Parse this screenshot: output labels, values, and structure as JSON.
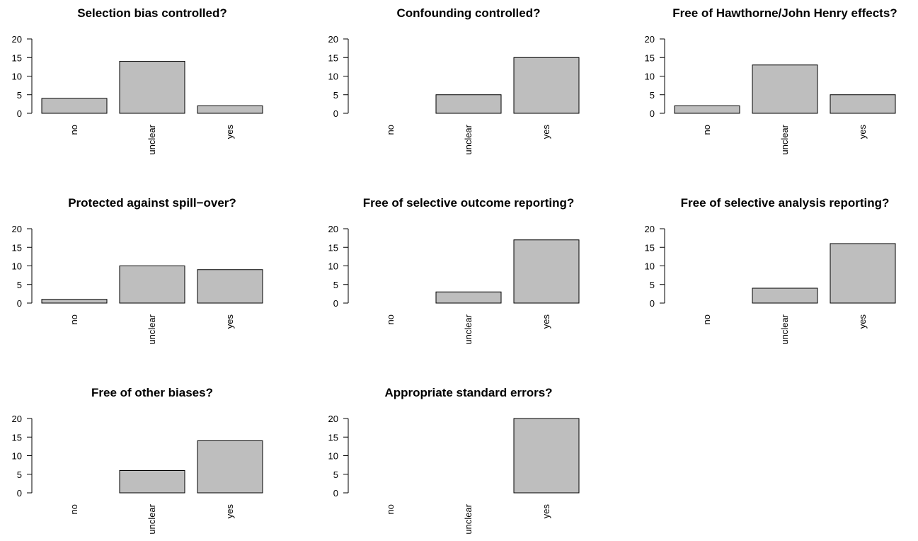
{
  "chart_data": [
    {
      "type": "bar",
      "title": "Selection bias controlled?",
      "categories": [
        "no",
        "unclear",
        "yes"
      ],
      "values": [
        4,
        14,
        2
      ],
      "ylim": [
        0,
        20
      ],
      "yticks": [
        "0",
        "5",
        "10",
        "15",
        "20"
      ],
      "xlabel": "",
      "ylabel": ""
    },
    {
      "type": "bar",
      "title": "Confounding controlled?",
      "categories": [
        "no",
        "unclear",
        "yes"
      ],
      "values": [
        0,
        5,
        15
      ],
      "ylim": [
        0,
        20
      ],
      "yticks": [
        "0",
        "5",
        "10",
        "15",
        "20"
      ],
      "xlabel": "",
      "ylabel": ""
    },
    {
      "type": "bar",
      "title": "Free of Hawthorne/John Henry effects?",
      "categories": [
        "no",
        "unclear",
        "yes"
      ],
      "values": [
        2,
        13,
        5
      ],
      "ylim": [
        0,
        20
      ],
      "yticks": [
        "0",
        "5",
        "10",
        "15",
        "20"
      ],
      "xlabel": "",
      "ylabel": ""
    },
    {
      "type": "bar",
      "title": "Protected against spill−over?",
      "categories": [
        "no",
        "unclear",
        "yes"
      ],
      "values": [
        1,
        10,
        9
      ],
      "ylim": [
        0,
        20
      ],
      "yticks": [
        "0",
        "5",
        "10",
        "15",
        "20"
      ],
      "xlabel": "",
      "ylabel": ""
    },
    {
      "type": "bar",
      "title": "Free of selective outcome reporting?",
      "categories": [
        "no",
        "unclear",
        "yes"
      ],
      "values": [
        0,
        3,
        17
      ],
      "ylim": [
        0,
        20
      ],
      "yticks": [
        "0",
        "5",
        "10",
        "15",
        "20"
      ],
      "xlabel": "",
      "ylabel": ""
    },
    {
      "type": "bar",
      "title": "Free of selective analysis reporting?",
      "categories": [
        "no",
        "unclear",
        "yes"
      ],
      "values": [
        0,
        4,
        16
      ],
      "ylim": [
        0,
        20
      ],
      "yticks": [
        "0",
        "5",
        "10",
        "15",
        "20"
      ],
      "xlabel": "",
      "ylabel": ""
    },
    {
      "type": "bar",
      "title": "Free of other biases?",
      "categories": [
        "no",
        "unclear",
        "yes"
      ],
      "values": [
        0,
        6,
        14
      ],
      "ylim": [
        0,
        20
      ],
      "yticks": [
        "0",
        "5",
        "10",
        "15",
        "20"
      ],
      "xlabel": "",
      "ylabel": ""
    },
    {
      "type": "bar",
      "title": "Appropriate standard errors?",
      "categories": [
        "no",
        "unclear",
        "yes"
      ],
      "values": [
        0,
        0,
        20
      ],
      "ylim": [
        0,
        20
      ],
      "yticks": [
        "0",
        "5",
        "10",
        "15",
        "20"
      ],
      "xlabel": "",
      "ylabel": ""
    }
  ],
  "colors": {
    "bar_fill": "#bebebe",
    "bar_stroke": "#000000",
    "axis": "#000000",
    "background": "#ffffff"
  }
}
